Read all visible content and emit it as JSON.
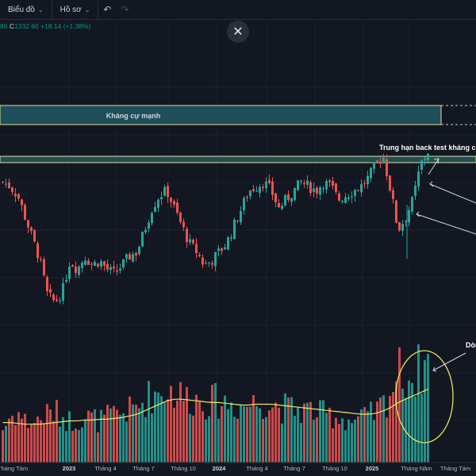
{
  "toolbar": {
    "chart_label": "Biểu đồ",
    "profile_label": "Hồ sơ"
  },
  "quote": {
    "prefix": "86",
    "close_key": "C",
    "close_value": "1332.60",
    "change": "+18.14 (+1.38%)"
  },
  "annotations": {
    "resistance_zone": "Kháng cự mạnh",
    "backtest": "Trung hạn back test kháng cự",
    "volume_note": "Dòn"
  },
  "x_axis": [
    {
      "label": "Tháng Tám",
      "bold": false
    },
    {
      "label": "2023",
      "bold": true
    },
    {
      "label": "Tháng 4",
      "bold": false
    },
    {
      "label": "Tháng 7",
      "bold": false
    },
    {
      "label": "Tháng 10",
      "bold": false
    },
    {
      "label": "2024",
      "bold": true
    },
    {
      "label": "Tháng 4",
      "bold": false
    },
    {
      "label": "Tháng 7",
      "bold": false
    },
    {
      "label": "Tháng 10",
      "bold": false
    },
    {
      "label": "2025",
      "bold": true
    },
    {
      "label": "Tháng Năm",
      "bold": false
    },
    {
      "label": "Tháng Tám",
      "bold": false
    }
  ],
  "colors": {
    "up": "#26a69a",
    "down": "#ef5350",
    "ma": "#f5e663",
    "zone_fill": "#1e4d5c",
    "zone_border": "#e3e38a",
    "circle": "#e8e35a"
  },
  "chart_data": {
    "type": "candlestick",
    "title": "",
    "close": 1332.6,
    "change": 18.14,
    "change_pct": 1.38,
    "price_path": [
      1260,
      1250,
      1230,
      1180,
      1130,
      1080,
      1000,
      985,
      1010,
      1080,
      1060,
      1090,
      1070,
      1080,
      1060,
      1050,
      1070,
      1090,
      1100,
      1150,
      1200,
      1230,
      1240,
      1200,
      1160,
      1120,
      1100,
      1070,
      1080,
      1100,
      1120,
      1160,
      1200,
      1240,
      1250,
      1260,
      1240,
      1200,
      1220,
      1240,
      1260,
      1250,
      1240,
      1260,
      1250,
      1220,
      1230,
      1240,
      1250,
      1270,
      1300,
      1320,
      1240,
      1150,
      1180,
      1220,
      1300,
      1330
    ],
    "volume_path": [
      40,
      55,
      60,
      50,
      48,
      52,
      58,
      60,
      56,
      50,
      52,
      55,
      53,
      50,
      54,
      57,
      60,
      62,
      66,
      75,
      82,
      85,
      88,
      84,
      80,
      78,
      76,
      74,
      73,
      74,
      72,
      70,
      68,
      70,
      72,
      74,
      70,
      68,
      65,
      64,
      63,
      64,
      60,
      58,
      57,
      55,
      52,
      50,
      52,
      55,
      60,
      70,
      85,
      110,
      105,
      100,
      115,
      120
    ],
    "ma_path": [
      48,
      48,
      47,
      46,
      46,
      46,
      47,
      48,
      49,
      50,
      50,
      51,
      51,
      52,
      52,
      53,
      54,
      56,
      58,
      62,
      66,
      70,
      74,
      76,
      76,
      75,
      74,
      73,
      72,
      72,
      71,
      70,
      69,
      69,
      70,
      70,
      70,
      69,
      68,
      67,
      66,
      65,
      64,
      63,
      62,
      61,
      60,
      59,
      58,
      58,
      59,
      62,
      66,
      72,
      76,
      80,
      84,
      88
    ]
  }
}
